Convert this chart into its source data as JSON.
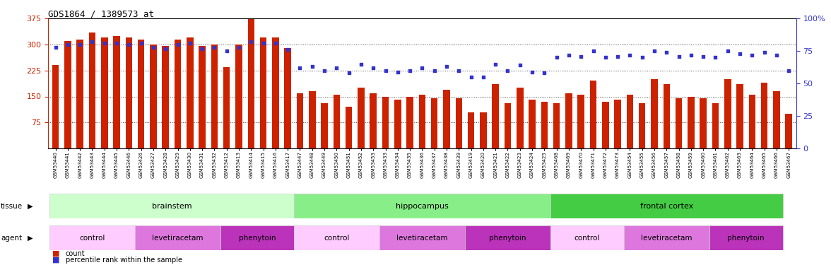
{
  "title": "GDS1864 / 1389573_at",
  "samples": [
    "GSM53440",
    "GSM53441",
    "GSM53442",
    "GSM53443",
    "GSM53444",
    "GSM53445",
    "GSM53446",
    "GSM53426",
    "GSM53427",
    "GSM53428",
    "GSM53429",
    "GSM53430",
    "GSM53431",
    "GSM53432",
    "GSM53412",
    "GSM53413",
    "GSM53414",
    "GSM53415",
    "GSM53416",
    "GSM53417",
    "GSM53447",
    "GSM53448",
    "GSM53449",
    "GSM53450",
    "GSM53451",
    "GSM53452",
    "GSM53453",
    "GSM53433",
    "GSM53434",
    "GSM53435",
    "GSM53436",
    "GSM53437",
    "GSM53438",
    "GSM53439",
    "GSM53419",
    "GSM53420",
    "GSM53421",
    "GSM53422",
    "GSM53423",
    "GSM53424",
    "GSM53425",
    "GSM53468",
    "GSM53469",
    "GSM53470",
    "GSM53471",
    "GSM53472",
    "GSM53473",
    "GSM53454",
    "GSM53455",
    "GSM53456",
    "GSM53457",
    "GSM53458",
    "GSM53459",
    "GSM53460",
    "GSM53461",
    "GSM53462",
    "GSM53463",
    "GSM53464",
    "GSM53465",
    "GSM53466",
    "GSM53467"
  ],
  "counts": [
    240,
    310,
    315,
    335,
    320,
    325,
    320,
    315,
    300,
    295,
    315,
    320,
    295,
    301,
    235,
    300,
    375,
    320,
    320,
    290,
    160,
    165,
    130,
    155,
    120,
    175,
    160,
    150,
    140,
    150,
    155,
    145,
    170,
    145,
    105,
    105,
    185,
    130,
    175,
    140,
    135,
    130,
    160,
    155,
    195,
    135,
    140,
    155,
    130,
    200,
    185,
    145,
    150,
    145,
    130,
    200,
    185,
    155,
    190,
    165,
    100
  ],
  "percentiles": [
    78,
    80,
    80,
    82,
    81,
    81,
    80,
    81,
    78,
    77,
    80,
    81,
    77,
    78,
    75,
    78,
    82,
    81,
    81,
    76,
    62,
    63,
    60,
    62,
    58,
    65,
    62,
    60,
    59,
    60,
    62,
    60,
    63,
    60,
    55,
    55,
    65,
    60,
    64,
    59,
    58,
    70,
    72,
    71,
    75,
    70,
    71,
    72,
    70,
    75,
    74,
    71,
    72,
    71,
    70,
    75,
    73,
    72,
    74,
    72,
    60
  ],
  "ylim_left": [
    0,
    375
  ],
  "yticks_left": [
    75,
    150,
    225,
    300,
    375
  ],
  "ylim_right": [
    0,
    100
  ],
  "yticks_right": [
    0,
    25,
    50,
    75,
    100
  ],
  "bar_color": "#cc2200",
  "dot_color": "#3333cc",
  "tissue_groups": [
    {
      "label": "brainstem",
      "start": 0,
      "end": 19,
      "color": "#ccffcc"
    },
    {
      "label": "hippocampus",
      "start": 20,
      "end": 40,
      "color": "#88ee88"
    },
    {
      "label": "frontal cortex",
      "start": 41,
      "end": 59,
      "color": "#44cc44"
    }
  ],
  "agent_groups": [
    {
      "label": "control",
      "start": 0,
      "end": 6,
      "color": "#ffccff"
    },
    {
      "label": "levetiracetam",
      "start": 7,
      "end": 13,
      "color": "#dd77dd"
    },
    {
      "label": "phenytoin",
      "start": 14,
      "end": 19,
      "color": "#bb33bb"
    },
    {
      "label": "control",
      "start": 20,
      "end": 26,
      "color": "#ffccff"
    },
    {
      "label": "levetiracetam",
      "start": 27,
      "end": 33,
      "color": "#dd77dd"
    },
    {
      "label": "phenytoin",
      "start": 34,
      "end": 40,
      "color": "#bb33bb"
    },
    {
      "label": "control",
      "start": 41,
      "end": 46,
      "color": "#ffccff"
    },
    {
      "label": "levetiracetam",
      "start": 47,
      "end": 53,
      "color": "#dd77dd"
    },
    {
      "label": "phenytoin",
      "start": 54,
      "end": 59,
      "color": "#bb33bb"
    }
  ],
  "grid_color": "#444444",
  "bg_color": "#ffffff",
  "title_color": "#000000",
  "left_axis_color": "#cc2200",
  "right_axis_color": "#3333cc",
  "fig_width": 11.76,
  "fig_height": 3.75,
  "dpi": 100
}
